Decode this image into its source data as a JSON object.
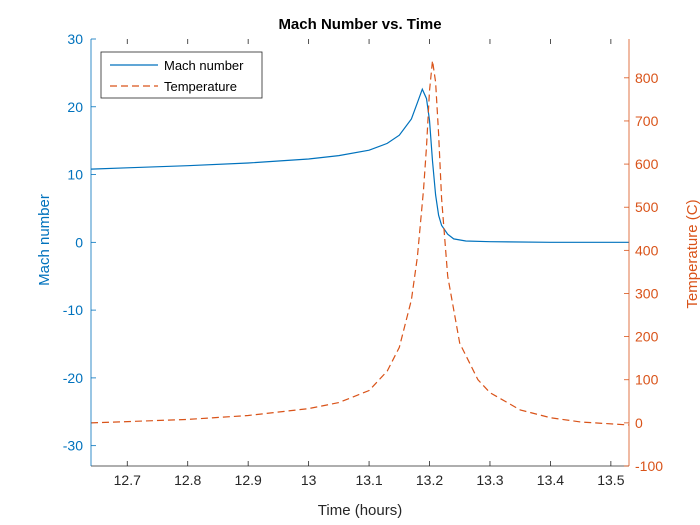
{
  "chart_data": {
    "type": "line",
    "title": "Mach Number vs. Time",
    "xlabel": "Time (hours)",
    "xlim": [
      12.64,
      13.53
    ],
    "xticks": [
      12.7,
      12.8,
      12.9,
      13,
      13.1,
      13.2,
      13.3,
      13.4,
      13.5
    ],
    "grid": false,
    "legend_position": "top-left",
    "y_left": {
      "label": "Mach number",
      "lim": [
        -33,
        30
      ],
      "ticks": [
        -30,
        -20,
        -10,
        0,
        10,
        20,
        30
      ],
      "color": "#0072BD"
    },
    "y_right": {
      "label": "Temperature (C)",
      "lim": [
        -100,
        890
      ],
      "ticks": [
        -100,
        0,
        100,
        200,
        300,
        400,
        500,
        600,
        700,
        800
      ],
      "color": "#D95319"
    },
    "series": [
      {
        "name": "Mach number",
        "axis": "left",
        "style": "solid",
        "color": "#0072BD",
        "x": [
          12.64,
          12.7,
          12.8,
          12.9,
          13.0,
          13.05,
          13.1,
          13.13,
          13.15,
          13.17,
          13.18,
          13.188,
          13.195,
          13.2,
          13.205,
          13.21,
          13.215,
          13.22,
          13.23,
          13.24,
          13.26,
          13.3,
          13.4,
          13.53
        ],
        "y": [
          10.8,
          11.0,
          11.3,
          11.7,
          12.3,
          12.8,
          13.6,
          14.6,
          15.8,
          18.2,
          20.6,
          22.6,
          21.2,
          18.0,
          12.0,
          7.0,
          4.0,
          2.5,
          1.2,
          0.5,
          0.2,
          0.1,
          0.0,
          0.0
        ]
      },
      {
        "name": "Temperature",
        "axis": "right",
        "style": "dashed",
        "color": "#D95319",
        "x": [
          12.64,
          12.7,
          12.8,
          12.9,
          13.0,
          13.05,
          13.1,
          13.13,
          13.15,
          13.17,
          13.18,
          13.19,
          13.195,
          13.2,
          13.205,
          13.21,
          13.215,
          13.22,
          13.23,
          13.25,
          13.28,
          13.3,
          13.35,
          13.4,
          13.45,
          13.53
        ],
        "y": [
          0,
          3,
          8,
          17,
          33,
          47,
          75,
          120,
          175,
          285,
          385,
          540,
          640,
          770,
          840,
          790,
          670,
          520,
          340,
          185,
          100,
          70,
          30,
          12,
          2,
          -5
        ]
      }
    ]
  }
}
